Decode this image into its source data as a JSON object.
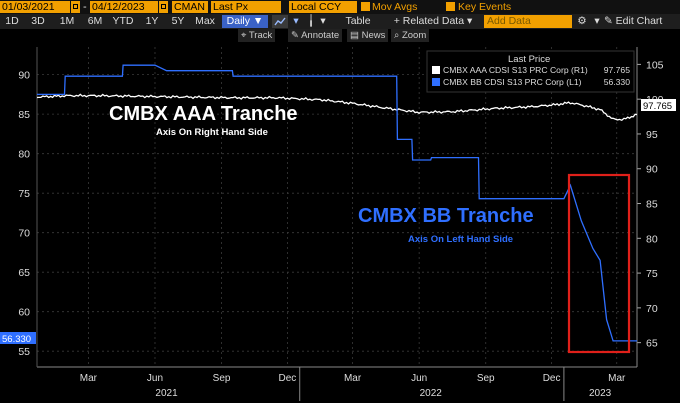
{
  "toolbar": {
    "start_date": "01/03/2021",
    "end_date": "04/12/2023",
    "field_cman": "CMAN",
    "field_last_px": "Last Px",
    "field_ccy": "Local CCY",
    "mov_avgs": "Mov Avgs",
    "key_events": "Key Events",
    "periods": [
      "1D",
      "3D",
      "1M",
      "6M",
      "YTD",
      "1Y",
      "5Y",
      "Max"
    ],
    "frequency": "Daily",
    "table_label": "Table",
    "related_data": "+ Related Data",
    "add_data_placeholder": "Add Data",
    "edit_chart": "Edit Chart",
    "track": "Track",
    "annotate": "Annotate",
    "news": "News",
    "zoom": "Zoom"
  },
  "legend": {
    "header": "Last Price",
    "aaa": {
      "label": "CMBX AAA CDSI S13 PRC Corp  (R1)",
      "value": "97.765",
      "color": "#ffffff"
    },
    "bb": {
      "label": "CMBX BB CDSI S13 PRC Corp  (L1)",
      "value": "56.330",
      "color": "#2f6fff"
    }
  },
  "annotations": {
    "aaa_title": "CMBX AAA Tranche",
    "aaa_sub": "Axis On Right Hand Side",
    "bb_title": "CMBX BB Tranche",
    "bb_sub": "Axis On Left Hand Side"
  },
  "last_labels": {
    "left": "56.330",
    "right": "97.765"
  },
  "chart_data": {
    "type": "line",
    "x_ticks": [
      "Mar",
      "Jun",
      "Sep",
      "Dec",
      "Mar",
      "Jun",
      "Sep",
      "Dec",
      "Mar"
    ],
    "x_years": [
      "2021",
      "2022",
      "2023"
    ],
    "left_axis": {
      "ticks": [
        55,
        60,
        65,
        70,
        75,
        80,
        85,
        90
      ],
      "ylim": [
        53,
        93.5
      ]
    },
    "right_axis": {
      "ticks": [
        65,
        70,
        75,
        80,
        85,
        90,
        95,
        100,
        105
      ],
      "ylim": [
        61.5,
        107.5
      ]
    },
    "x_range": [
      "2021-01-03",
      "2023-04-12"
    ],
    "series": [
      {
        "name": "CMBX AAA CDSI S13 PRC Corp (R1)",
        "axis": "right",
        "color": "#ffffff",
        "x": [
          "2021-01-03",
          "2021-02-15",
          "2021-04-01",
          "2021-06-01",
          "2021-08-01",
          "2021-10-01",
          "2021-12-01",
          "2022-02-01",
          "2022-03-15",
          "2022-05-01",
          "2022-06-15",
          "2022-08-01",
          "2022-10-01",
          "2022-11-15",
          "2022-12-20",
          "2023-01-10",
          "2023-02-01",
          "2023-02-20",
          "2023-03-10",
          "2023-03-25",
          "2023-04-12"
        ],
        "values": [
          100.3,
          100.5,
          100.5,
          100.4,
          100.3,
          100.2,
          100.2,
          99.9,
          99.4,
          98.7,
          98.1,
          98.2,
          98.7,
          98.9,
          99.2,
          99.5,
          99.0,
          98.5,
          97.1,
          97.1,
          97.8
        ]
      },
      {
        "name": "CMBX BB CDSI S13 PRC Corp (L1)",
        "axis": "left",
        "color": "#2f6fff",
        "x": [
          "2021-01-03",
          "2021-02-10",
          "2021-02-11",
          "2021-05-01",
          "2021-05-02",
          "2021-06-15",
          "2021-07-01",
          "2021-09-30",
          "2021-10-01",
          "2022-05-15",
          "2022-05-16",
          "2022-06-05",
          "2022-06-06",
          "2022-07-01",
          "2022-07-02",
          "2022-09-05",
          "2022-09-06",
          "2023-01-01",
          "2023-01-10",
          "2023-01-25",
          "2023-02-10",
          "2023-02-20",
          "2023-03-01",
          "2023-03-10",
          "2023-04-12"
        ],
        "values": [
          87.5,
          87.5,
          89.8,
          89.8,
          91.2,
          91.2,
          90.5,
          90.5,
          89.8,
          89.8,
          81.8,
          81.8,
          79.2,
          79.2,
          79.5,
          79.5,
          74.3,
          74.3,
          76.0,
          71.5,
          68.0,
          66.5,
          59.0,
          56.3,
          56.3
        ]
      }
    ]
  }
}
